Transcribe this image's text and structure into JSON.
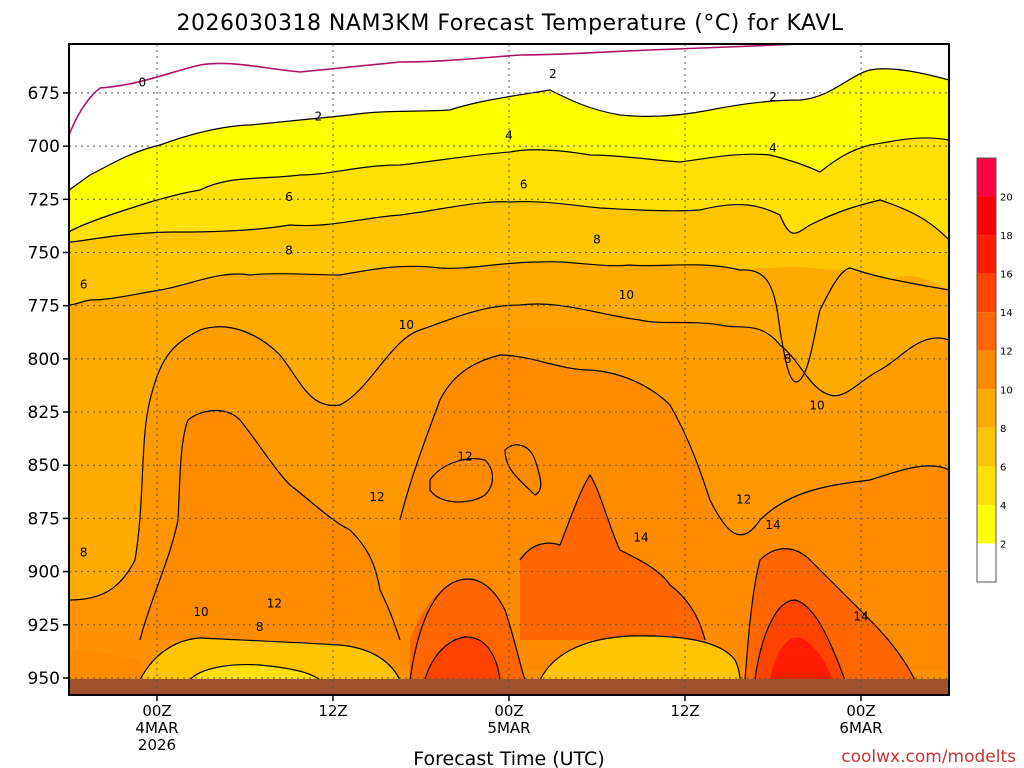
{
  "header": {
    "title": "2026030318 NAM3KM Forecast Temperature (°C) for KAVL"
  },
  "footer": {
    "credit": "coolwx.com/modelts"
  },
  "chart_data": {
    "type": "contour",
    "xlabel": "Forecast Time (UTC)",
    "ylabel": "",
    "x_ticks": [
      {
        "hour": 6,
        "lines": [
          "00Z",
          "4MAR",
          "2026"
        ]
      },
      {
        "hour": 18,
        "lines": [
          "12Z"
        ]
      },
      {
        "hour": 30,
        "lines": [
          "00Z",
          "5MAR"
        ]
      },
      {
        "hour": 42,
        "lines": [
          "12Z"
        ]
      },
      {
        "hour": 54,
        "lines": [
          "00Z",
          "6MAR"
        ]
      }
    ],
    "xlim": [
      0,
      60
    ],
    "y_ticks": [
      675,
      700,
      725,
      750,
      775,
      800,
      825,
      850,
      875,
      900,
      925,
      950
    ],
    "ylim": [
      652,
      958
    ],
    "y_reversed": true,
    "ground_level_hpa": 949,
    "colorbar": {
      "levels": [
        2,
        4,
        6,
        8,
        10,
        12,
        14,
        16,
        18,
        20
      ],
      "colors": [
        "#ffffff",
        "#ffff00",
        "#ffe000",
        "#ffc400",
        "#ffaa00",
        "#ff8c00",
        "#ff6600",
        "#ff4400",
        "#ff1c00",
        "#ff0000",
        "#ff0044"
      ]
    },
    "contour_labels": [
      {
        "value": "0",
        "hour": 5,
        "p": 670
      },
      {
        "value": "2",
        "hour": 17,
        "p": 686
      },
      {
        "value": "2",
        "hour": 33,
        "p": 666
      },
      {
        "value": "2",
        "hour": 48,
        "p": 677
      },
      {
        "value": "4",
        "hour": 30,
        "p": 695
      },
      {
        "value": "4",
        "hour": 48,
        "p": 701
      },
      {
        "value": "6",
        "hour": 15,
        "p": 724
      },
      {
        "value": "6",
        "hour": 31,
        "p": 718
      },
      {
        "value": "6",
        "hour": 1,
        "p": 765
      },
      {
        "value": "8",
        "hour": 15,
        "p": 749
      },
      {
        "value": "8",
        "hour": 36,
        "p": 744
      },
      {
        "value": "8",
        "hour": 49,
        "p": 800
      },
      {
        "value": "8",
        "hour": 1,
        "p": 891
      },
      {
        "value": "8",
        "hour": 13,
        "p": 926
      },
      {
        "value": "10",
        "hour": 23,
        "p": 784
      },
      {
        "value": "10",
        "hour": 38,
        "p": 770
      },
      {
        "value": "10",
        "hour": 51,
        "p": 822
      },
      {
        "value": "10",
        "hour": 9,
        "p": 919
      },
      {
        "value": "12",
        "hour": 27,
        "p": 846
      },
      {
        "value": "12",
        "hour": 21,
        "p": 865
      },
      {
        "value": "12",
        "hour": 14,
        "p": 915
      },
      {
        "value": "12",
        "hour": 46,
        "p": 866
      },
      {
        "value": "14",
        "hour": 39,
        "p": 884
      },
      {
        "value": "14",
        "hour": 48,
        "p": 878
      },
      {
        "value": "14",
        "hour": 54,
        "p": 921
      }
    ]
  }
}
